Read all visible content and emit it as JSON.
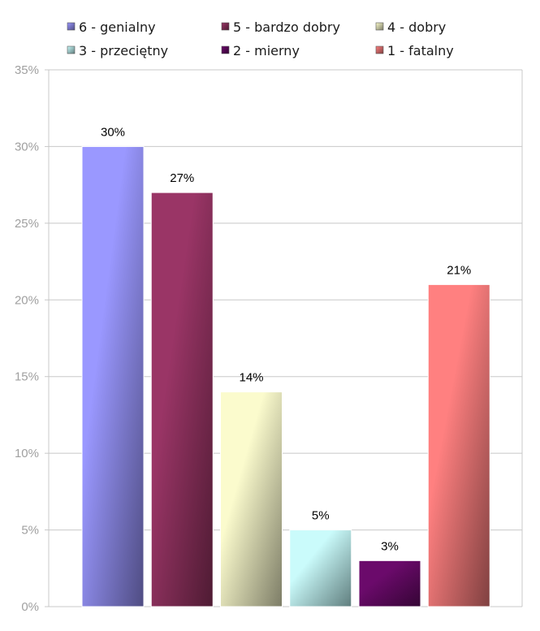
{
  "chart_data": {
    "type": "bar",
    "categories": [
      "6 - genialny",
      "5 - bardzo dobry",
      "4 - dobry",
      "3 - przeciętny",
      "2 - mierny",
      "1 - fatalny"
    ],
    "values": [
      30,
      27,
      14,
      5,
      3,
      21
    ],
    "value_labels": [
      "30%",
      "27%",
      "14%",
      "5%",
      "3%",
      "21%"
    ],
    "ylim": [
      0,
      35
    ],
    "yticks": [
      0,
      5,
      10,
      15,
      20,
      25,
      30,
      35
    ],
    "ytick_labels": [
      "0%",
      "5%",
      "10%",
      "15%",
      "20%",
      "25%",
      "30%",
      "35%"
    ],
    "grid": true,
    "legend_position": "top",
    "colors": [
      {
        "light": "#9a98ff",
        "dark": "#4f4c82"
      },
      {
        "light": "#9a3566",
        "dark": "#4e1b33"
      },
      {
        "light": "#fbfbcd",
        "dark": "#7c7c66"
      },
      {
        "light": "#cafbfb",
        "dark": "#5f7d7d"
      },
      {
        "light": "#6b0a6b",
        "dark": "#340534"
      },
      {
        "light": "#ff8080",
        "dark": "#7f4040"
      }
    ],
    "legend_colors": [
      "#8684e6",
      "#8a2a58",
      "#e8e8b8",
      "#b4e8e8",
      "#5a0a5a",
      "#e87070"
    ]
  }
}
